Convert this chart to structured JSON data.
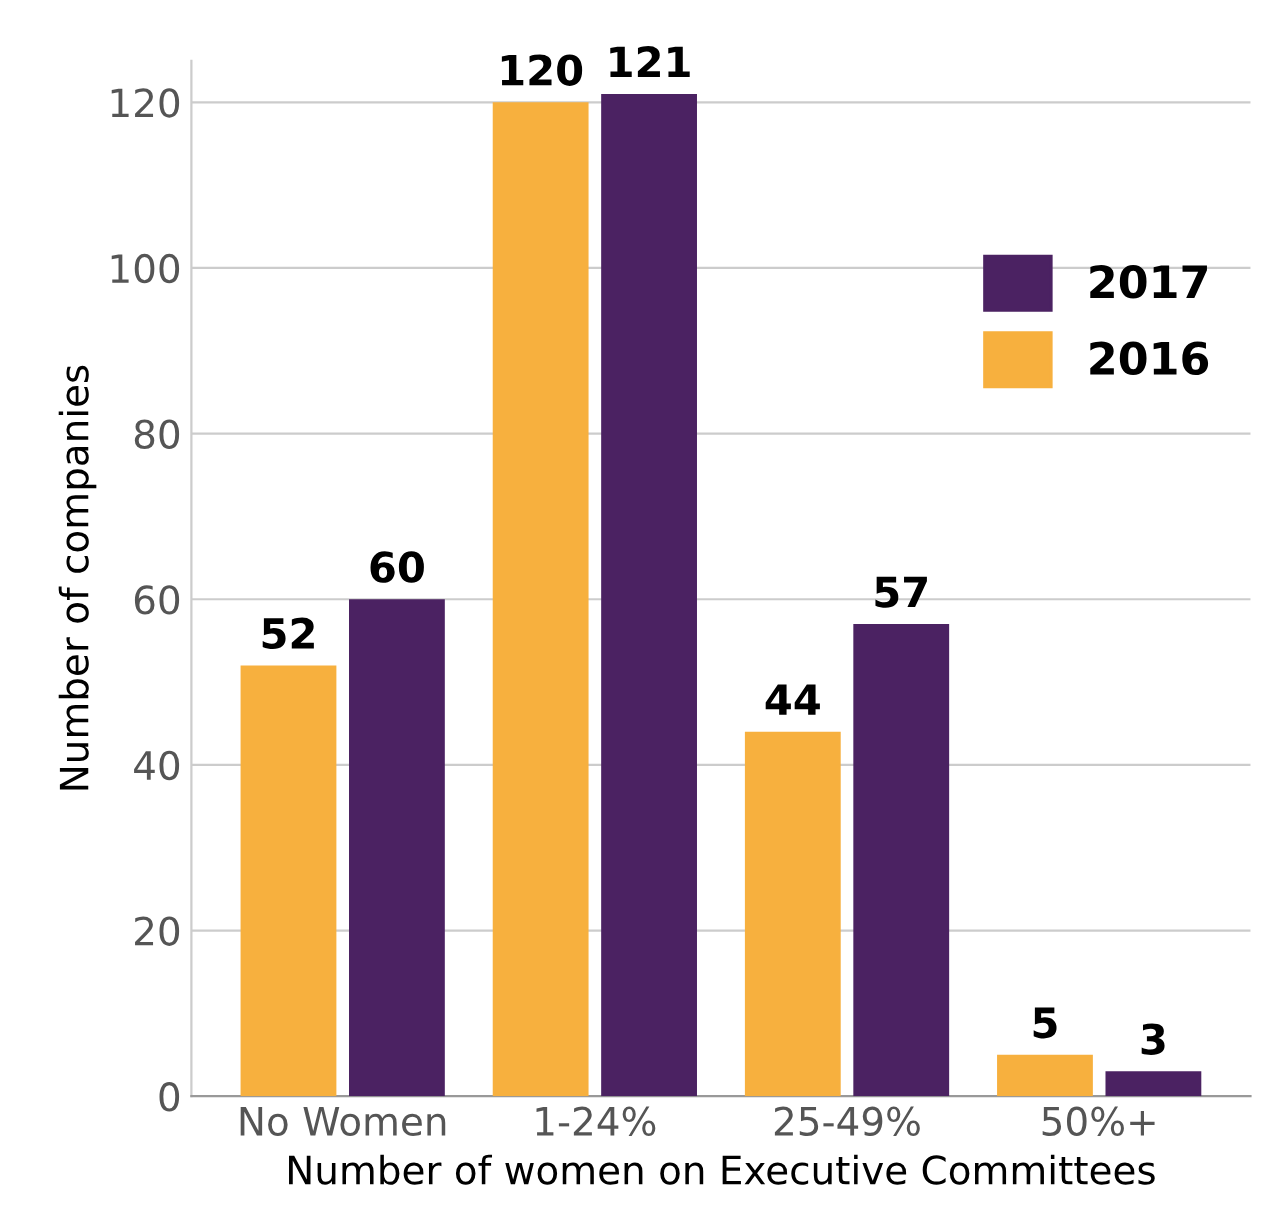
{
  "chart_data": {
    "type": "bar",
    "xlabel": "Number of women on Executive Committees",
    "ylabel": "Number of companies",
    "categories": [
      "No Women",
      "1-24%",
      "25-49%",
      "50%+"
    ],
    "series": [
      {
        "name": "2016",
        "color": "#f7b03e",
        "values": [
          52,
          120,
          44,
          5
        ]
      },
      {
        "name": "2017",
        "color": "#4b2262",
        "values": [
          60,
          121,
          57,
          3
        ]
      }
    ],
    "ylim": [
      0,
      125
    ],
    "yticks": [
      0,
      20,
      40,
      60,
      80,
      100,
      120
    ],
    "grid": "y",
    "legend": "top right",
    "data_labels": true
  }
}
